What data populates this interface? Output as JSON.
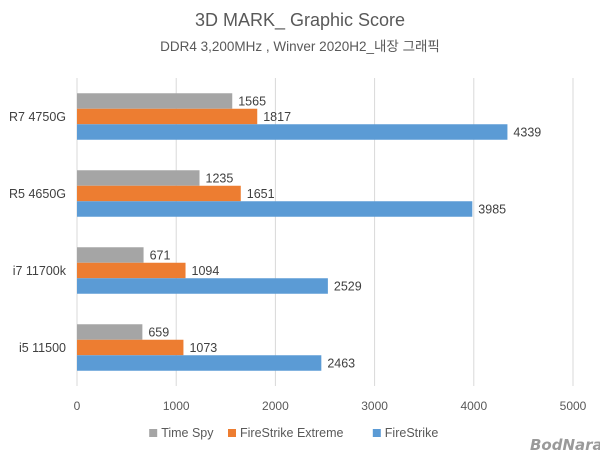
{
  "chart_data": {
    "type": "bar",
    "orientation": "horizontal",
    "title": "3D MARK_ Graphic Score",
    "subtitle": "DDR4 3,200MHz , Winver 2020H2_내장 그래픽",
    "categories": [
      "R7 4750G",
      "R5 4650G",
      "i7 11700k",
      "i5 11500"
    ],
    "series": [
      {
        "name": "Time Spy",
        "color": "#a5a5a5",
        "values": [
          1565,
          1235,
          671,
          659
        ]
      },
      {
        "name": "FireStrike Extreme",
        "color": "#ed7d31",
        "values": [
          1817,
          1651,
          1094,
          1073
        ]
      },
      {
        "name": "FireStrike",
        "color": "#5b9bd5",
        "values": [
          4339,
          3985,
          2529,
          2463
        ]
      }
    ],
    "xlim": [
      0,
      5000
    ],
    "xticks": [
      "0",
      "1000",
      "2000",
      "3000",
      "4000",
      "5000"
    ],
    "xlabel": "",
    "ylabel": "",
    "grid": true,
    "legend_position": "bottom"
  },
  "watermark": "BodNara"
}
